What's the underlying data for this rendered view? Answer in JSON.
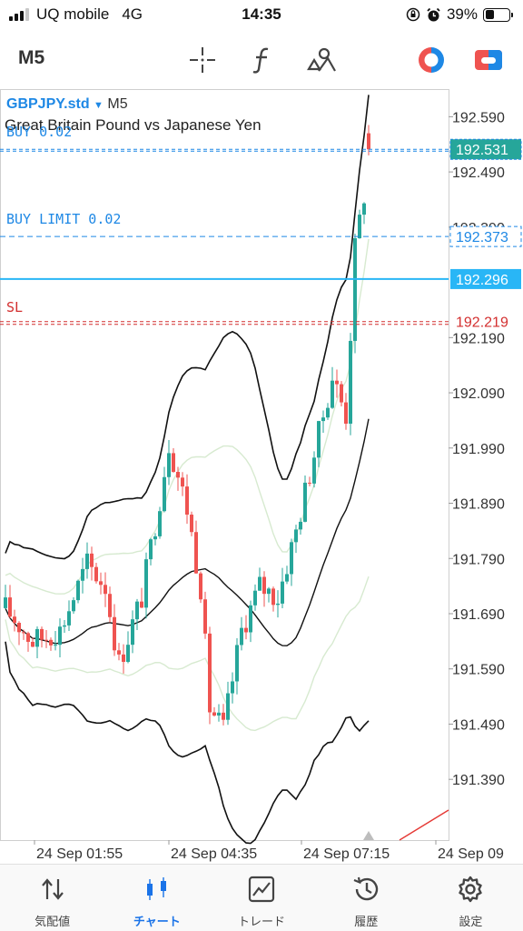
{
  "status_bar": {
    "carrier": "UQ mobile",
    "network": "4G",
    "time": "14:35",
    "battery": "39%",
    "battery_level": 0.39
  },
  "toolbar": {
    "timeframe": "M5",
    "icons": [
      "crosshair-icon",
      "function-icon",
      "objects-icon",
      "trade-toggle-icon",
      "one-click-icon"
    ]
  },
  "chart": {
    "symbol": "GBPJPY.std",
    "timeframe": "M5",
    "description": "Great Britain Pound vs Japanese Yen",
    "price_axis": [
      "192.590",
      "192.490",
      "192.390",
      "192.190",
      "192.090",
      "191.990",
      "191.890",
      "191.790",
      "191.690",
      "191.590",
      "191.490",
      "191.390"
    ],
    "time_axis": [
      "24 Sep 01:55",
      "24 Sep 04:35",
      "24 Sep 07:15",
      "24 Sep 09"
    ],
    "lines": {
      "buy": {
        "label": "BUY 0.02",
        "price": "192.531",
        "color": "#1e88e5"
      },
      "buy_limit": {
        "label": "BUY LIMIT 0.02",
        "price": "192.373",
        "color": "#1e88e5"
      },
      "bid": {
        "price": "192.296",
        "color": "#29b6f6"
      },
      "sl": {
        "label": "SL",
        "price": "192.219",
        "color": "#d32f2f"
      }
    },
    "colors": {
      "bull": "#26a69a",
      "bear": "#ef5350"
    },
    "ylim": [
      191.28,
      192.64
    ]
  },
  "bottom_nav": [
    {
      "label": "気配値",
      "icon": "quotes-icon",
      "active": false
    },
    {
      "label": "チャート",
      "icon": "chart-icon",
      "active": true
    },
    {
      "label": "トレード",
      "icon": "trade-icon",
      "active": false
    },
    {
      "label": "履歴",
      "icon": "history-icon",
      "active": false
    },
    {
      "label": "設定",
      "icon": "settings-icon",
      "active": false
    }
  ]
}
